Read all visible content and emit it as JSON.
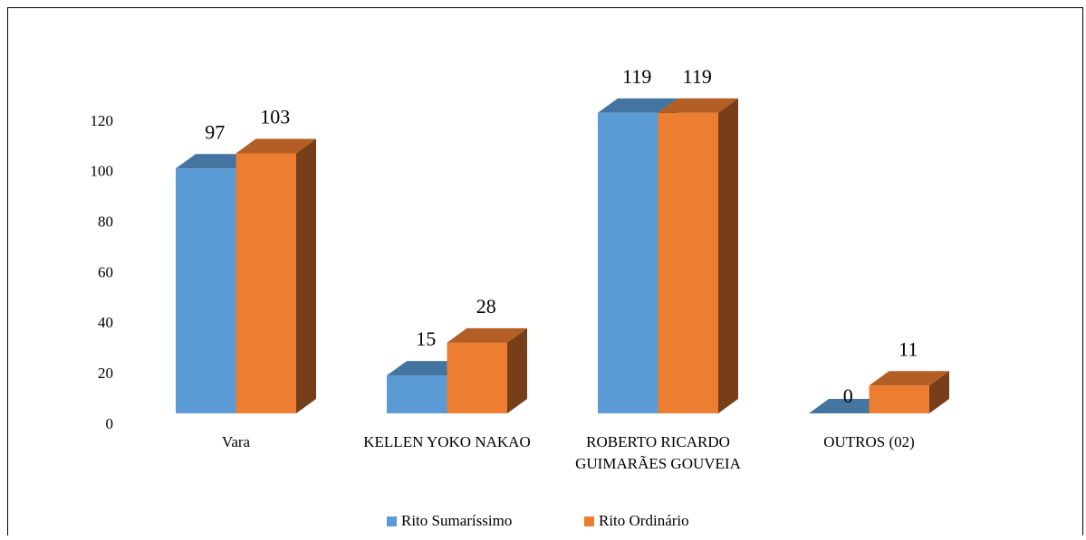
{
  "chart_data": {
    "type": "bar3d",
    "categories": [
      "Vara",
      "KELLEN YOKO NAKAO",
      "ROBERTO RICARDO GUIMARÃES GOUVEIA",
      "OUTROS (02)"
    ],
    "series": [
      {
        "name": "Rito Sumaríssimo",
        "color": "#5b9bd5",
        "values": [
          97,
          15,
          119,
          0
        ]
      },
      {
        "name": "Rito Ordinário",
        "color": "#ed7d31",
        "values": [
          103,
          28,
          119,
          11
        ]
      }
    ],
    "ylim": [
      0,
      120
    ],
    "yticks": [
      0,
      20,
      40,
      60,
      80,
      100,
      120
    ],
    "grid": false,
    "legend": "bottom"
  }
}
